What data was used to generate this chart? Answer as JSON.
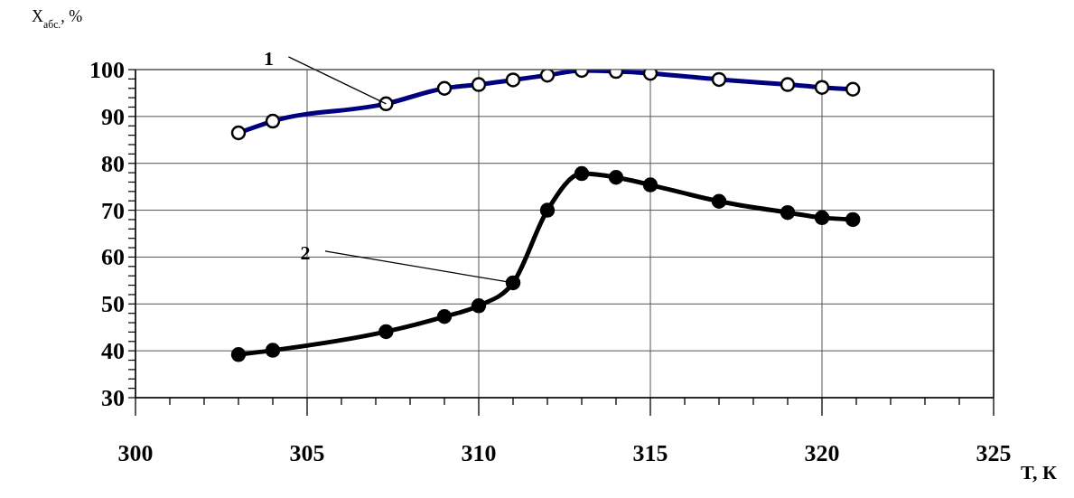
{
  "chart_data": {
    "type": "line",
    "xlabel": "T, К",
    "ylabel": "X$_{абс.}$, %",
    "x": [
      303,
      304,
      307.3,
      309,
      310,
      311,
      312,
      313,
      314,
      315,
      317,
      319,
      320,
      320.9
    ],
    "series": [
      {
        "color": "#000080",
        "values": [
          86.5,
          89,
          92.7,
          96,
          96.8,
          97.8,
          98.8,
          99.8,
          99.6,
          99.2,
          97.9,
          96.8,
          96.2,
          95.8
        ]
      },
      {
        "color": "#000000",
        "values": [
          39.2,
          40.1,
          44.1,
          47.3,
          49.6,
          54.5,
          70,
          77.8,
          77,
          75.4,
          71.9,
          69.5,
          68.4,
          68
        ]
      }
    ],
    "xlim": [
      300,
      325
    ],
    "xticks": [
      300,
      {
        "value": 301,
        "label": null
      },
      {
        "value": 302,
        "label": null
      },
      {
        "value": 303,
        "label": null
      },
      {
        "value": 304,
        "label": null
      },
      305,
      {
        "value": 306,
        "label": null
      },
      {
        "value": 307,
        "label": null
      },
      {
        "value": 308,
        "label": null
      },
      {
        "value": 309,
        "label": null
      },
      310,
      {
        "value": 311,
        "label": null
      },
      {
        "value": 312,
        "label": null
      },
      {
        "value": 313,
        "label": null
      },
      {
        "value": 314,
        "label": null
      },
      315,
      {
        "value": 316,
        "label": null
      },
      {
        "value": 317,
        "label": null
      },
      {
        "value": 318,
        "label": null
      },
      {
        "value": 319,
        "label": null
      },
      320,
      {
        "value": 321,
        "label": null
      },
      {
        "value": 322,
        "label": null
      },
      {
        "value": 323,
        "label": null
      },
      {
        "value": 324,
        "label": null
      },
      325
    ],
    "ylim": [
      30,
      100
    ],
    "yticks": [
      30,
      {
        "value": 32,
        "label": null
      },
      {
        "value": 34,
        "label": null
      },
      {
        "value": 36,
        "label": null
      },
      {
        "value": 38,
        "label": null
      },
      40,
      {
        "value": 42,
        "label": null
      },
      {
        "value": 44,
        "label": null
      },
      {
        "value": 46,
        "label": null
      },
      {
        "value": 48,
        "label": null
      },
      50,
      {
        "value": 52,
        "label": null
      },
      {
        "value": 54,
        "label": null
      },
      {
        "value": 56,
        "label": null
      },
      {
        "value": 58,
        "label": null
      },
      60,
      {
        "value": 62,
        "label": null
      },
      {
        "value": 64,
        "label": null
      },
      {
        "value": 66,
        "label": null
      },
      {
        "value": 68,
        "label": null
      },
      70,
      {
        "value": 72,
        "label": null
      },
      {
        "value": 74,
        "label": null
      },
      {
        "value": 76,
        "label": null
      },
      {
        "value": 78,
        "label": null
      },
      80,
      {
        "value": 82,
        "label": null
      },
      {
        "value": 84,
        "label": null
      },
      {
        "value": 86,
        "label": null
      },
      {
        "value": 88,
        "label": null
      },
      90,
      {
        "value": 92,
        "label": null
      },
      {
        "value": 94,
        "label": null
      },
      {
        "value": 96,
        "label": null
      },
      {
        "value": 98,
        "label": null
      },
      100
    ],
    "grid": true,
    "marker": "circle",
    "line_style": "solid",
    "annotations": [
      {
        "text": "1",
        "x": 307.3,
        "y": 92.7
      },
      {
        "text": "2",
        "x": 311,
        "y": 54.5
      }
    ]
  }
}
